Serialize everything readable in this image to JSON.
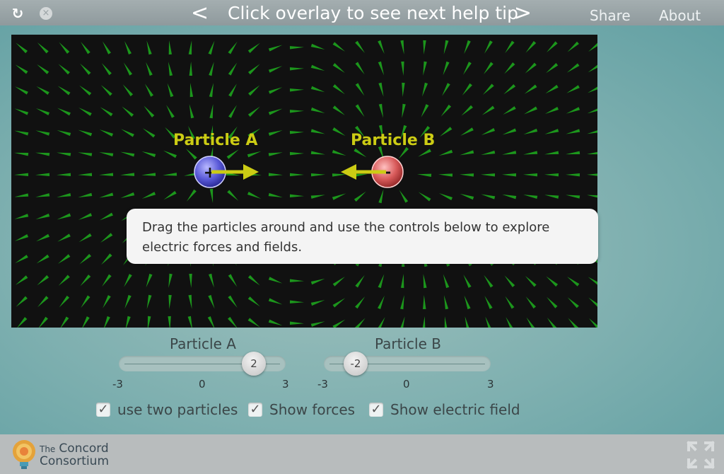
{
  "topbar": {
    "reload_icon": "reload-icon",
    "close_icon": "close-icon",
    "help_prev": "<",
    "help_next": ">",
    "help_title": "Click overlay to see next help tip",
    "share": "Share",
    "about": "About"
  },
  "simulation": {
    "particle_a_label": "Particle A",
    "particle_b_label": "Particle B",
    "particle_a_sign": "+",
    "particle_b_sign": "-",
    "colors": {
      "background": "#111111",
      "field": "#1fae1f",
      "force": "#cccc14",
      "label": "#cccc14"
    }
  },
  "tip": {
    "text": "Drag the particles around and use the controls below to explore electric forces and fields."
  },
  "sliders": {
    "a": {
      "title": "Particle A",
      "value": "2",
      "min": "-3",
      "mid": "0",
      "max": "3"
    },
    "b": {
      "title": "Particle B",
      "value": "-2",
      "min": "-3",
      "mid": "0",
      "max": "3"
    }
  },
  "options": {
    "two_particles": {
      "label": "use two particles",
      "checked": true
    },
    "show_forces": {
      "label": "Show forces",
      "checked": true
    },
    "show_field": {
      "label": "Show electric field",
      "checked": true
    }
  },
  "footer": {
    "logo_line1": "The",
    "logo_line1b": "Concord",
    "logo_line2": "Consortium",
    "fullscreen_icon": "fullscreen-icon"
  }
}
